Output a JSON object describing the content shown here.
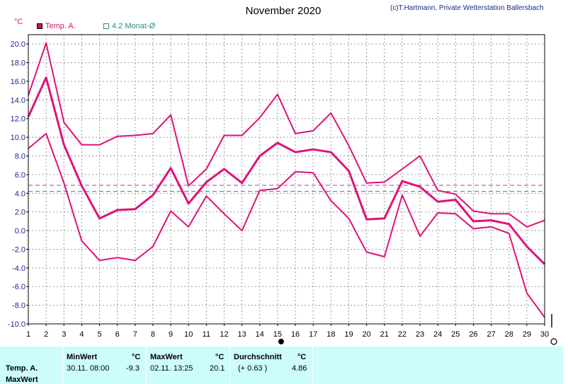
{
  "header": {
    "title": "November 2020",
    "credit": "(c)T.Hartmann, Private Wetterstation Ballersbach",
    "unit": "°C"
  },
  "legend": [
    {
      "label": "Temp. A.",
      "color": "#d0106a"
    },
    {
      "label": "4.2 Monat-Ø",
      "color": "#2a8c8c"
    }
  ],
  "chart_data": {
    "type": "line",
    "title": "November 2020",
    "ylabel": "°C",
    "ylim": [
      -10,
      21
    ],
    "y_ticks": [
      "20.0",
      "18.0",
      "16.0",
      "14.0",
      "12.0",
      "10.0",
      "8.0",
      "6.0",
      "4.0",
      "2.0",
      "0.0",
      "-2.0",
      "-4.0",
      "-6.0",
      "-8.0",
      "-10.0"
    ],
    "x": [
      1,
      2,
      3,
      4,
      5,
      6,
      7,
      8,
      9,
      10,
      11,
      12,
      13,
      14,
      15,
      16,
      17,
      18,
      19,
      20,
      21,
      22,
      23,
      24,
      25,
      26,
      27,
      28,
      29,
      30
    ],
    "grid": true,
    "series": [
      {
        "role": "max",
        "values": [
          14.5,
          20.1,
          11.6,
          9.2,
          9.2,
          10.1,
          10.2,
          10.4,
          12.4,
          4.8,
          6.6,
          10.2,
          10.2,
          12.1,
          14.6,
          10.4,
          10.7,
          12.6,
          9.1,
          5.1,
          5.2,
          6.6,
          8.0,
          4.3,
          3.9,
          2.1,
          1.8,
          1.8,
          0.4,
          1.1
        ],
        "color": "#e0127a"
      },
      {
        "role": "avg",
        "values": [
          12.2,
          16.4,
          9.2,
          4.8,
          1.3,
          2.2,
          2.3,
          3.8,
          6.7,
          2.9,
          5.2,
          6.6,
          5.1,
          8.0,
          9.4,
          8.4,
          8.7,
          8.4,
          6.4,
          1.2,
          1.3,
          5.3,
          4.7,
          3.1,
          3.3,
          1.0,
          1.1,
          0.7,
          -1.7,
          -3.6
        ],
        "color": "#e0127a"
      },
      {
        "role": "min",
        "values": [
          8.8,
          10.4,
          5.1,
          -1.1,
          -3.2,
          -2.9,
          -3.2,
          -1.7,
          2.1,
          0.4,
          3.7,
          1.8,
          0.0,
          4.3,
          4.5,
          6.3,
          6.2,
          3.2,
          1.3,
          -2.3,
          -2.8,
          3.8,
          -0.6,
          1.9,
          1.8,
          0.2,
          0.4,
          -0.3,
          -6.7,
          -9.3
        ],
        "color": "#e0127a"
      }
    ],
    "reference_lines": [
      {
        "value": 4.86,
        "color": "#c02cc0"
      },
      {
        "value": 4.2,
        "color": "#2a8c8c"
      }
    ]
  },
  "stats": {
    "row_labels": [
      "Temp. A.",
      "MaxWert"
    ],
    "min": {
      "header": "MinWert",
      "unit": "°C",
      "datetime": "30.11.  08:00",
      "value": "-9.3"
    },
    "max": {
      "header": "MaxWert",
      "unit": "°C",
      "datetime": "02.11.  13:25",
      "value": "20.1"
    },
    "avg": {
      "header": "Durchschnitt",
      "unit": "°C",
      "delta": "(+ 0.63 )",
      "value": "4.86"
    }
  }
}
